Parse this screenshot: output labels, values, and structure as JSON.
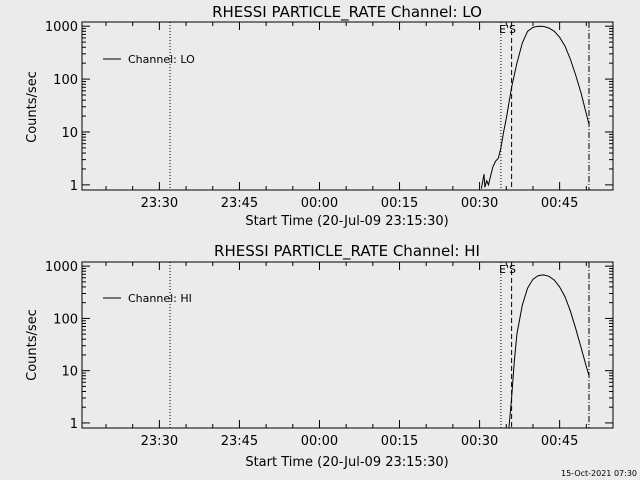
{
  "footer_timestamp": "15-Oct-2021 07:30",
  "chart_data": [
    {
      "type": "line",
      "title": "RHESSI PARTICLE_RATE Channel: LO",
      "xlabel": "Start Time (20-Jul-09 23:15:30)",
      "ylabel": "Counts/sec",
      "y_scale": "log",
      "xlim": [
        "23:15:30",
        "00:55:00"
      ],
      "ylim": [
        0.8,
        1200
      ],
      "x_ticks": [
        "23:30",
        "23:45",
        "00:00",
        "00:15",
        "00:30",
        "00:45"
      ],
      "y_ticks": [
        "1",
        "10",
        "100",
        "1000"
      ],
      "legend": {
        "placement": "top-left",
        "entries": [
          "Channel: LO"
        ]
      },
      "annotation": "E'S",
      "grid": false,
      "series": [
        {
          "name": "Channel: LO",
          "x": [
            "00:30:20",
            "00:30:50",
            "00:31:00",
            "00:31:20",
            "00:31:40",
            "00:32:00",
            "00:32:30",
            "00:33:00",
            "00:33:30",
            "00:34:00",
            "00:34:30",
            "00:35:00",
            "00:35:30",
            "00:36:00",
            "00:37:00",
            "00:38:00",
            "00:39:00",
            "00:40:00",
            "00:41:00",
            "00:42:00",
            "00:43:00",
            "00:44:00",
            "00:45:00",
            "00:46:00",
            "00:47:00",
            "00:48:00",
            "00:49:00",
            "00:50:00",
            "00:50:30"
          ],
          "values": [
            0.85,
            1.6,
            0.9,
            1.2,
            1.0,
            1.4,
            2.2,
            2.8,
            3.2,
            5,
            10,
            18,
            35,
            70,
            200,
            480,
            800,
            950,
            1000,
            990,
            920,
            800,
            620,
            420,
            240,
            120,
            55,
            22,
            14
          ]
        }
      ],
      "vertical_lines": [
        {
          "x": "23:32:00",
          "style": "dotted"
        },
        {
          "x": "00:34:00",
          "style": "dotted"
        },
        {
          "x": "00:36:00",
          "style": "dashed"
        },
        {
          "x": "00:50:30",
          "style": "dash-dot"
        }
      ]
    },
    {
      "type": "line",
      "title": "RHESSI PARTICLE_RATE Channel: HI",
      "xlabel": "Start Time (20-Jul-09 23:15:30)",
      "ylabel": "Counts/sec",
      "y_scale": "log",
      "xlim": [
        "23:15:30",
        "00:55:00"
      ],
      "ylim": [
        0.8,
        1200
      ],
      "x_ticks": [
        "23:30",
        "23:45",
        "00:00",
        "00:15",
        "00:30",
        "00:45"
      ],
      "y_ticks": [
        "1",
        "10",
        "100",
        "1000"
      ],
      "legend": {
        "placement": "top-left",
        "entries": [
          "Channel: HI"
        ]
      },
      "annotation": "E'S",
      "grid": false,
      "series": [
        {
          "name": "Channel: HI",
          "x": [
            "00:35:30",
            "00:36:00",
            "00:36:30",
            "00:37:00",
            "00:38:00",
            "00:39:00",
            "00:40:00",
            "00:41:00",
            "00:42:00",
            "00:43:00",
            "00:44:00",
            "00:45:00",
            "00:46:00",
            "00:47:00",
            "00:48:00",
            "00:49:00",
            "00:50:00",
            "00:50:30"
          ],
          "values": [
            0.8,
            3,
            15,
            50,
            180,
            380,
            560,
            660,
            680,
            640,
            540,
            400,
            260,
            140,
            65,
            28,
            12,
            8
          ]
        }
      ],
      "vertical_lines": [
        {
          "x": "23:32:00",
          "style": "dotted"
        },
        {
          "x": "00:34:00",
          "style": "dotted"
        },
        {
          "x": "00:36:00",
          "style": "dashed"
        },
        {
          "x": "00:50:30",
          "style": "dash-dot"
        }
      ]
    }
  ]
}
